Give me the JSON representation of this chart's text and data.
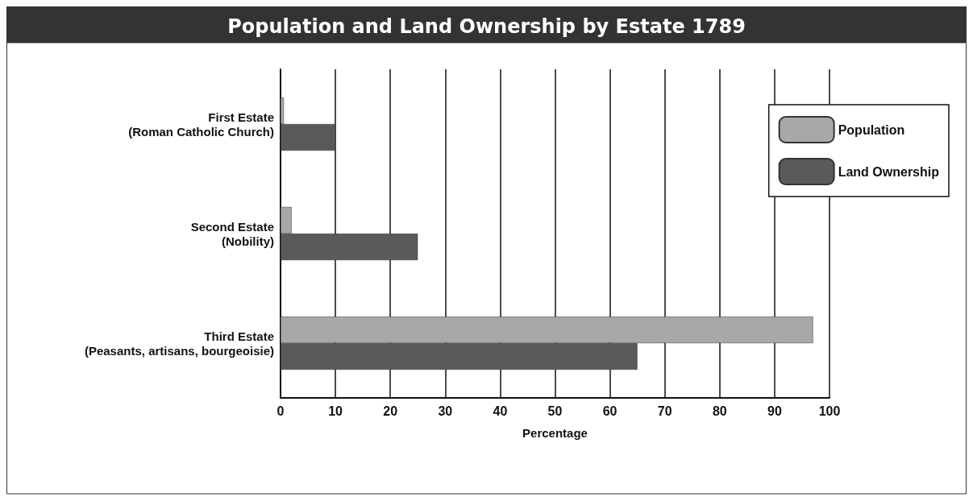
{
  "chart_data": {
    "type": "bar",
    "orientation": "horizontal",
    "title": "Population and Land Ownership by Estate 1789",
    "xlabel": "Percentage",
    "categories": [
      "First Estate\n(Roman Catholic Church)",
      "Second Estate\n(Nobility)",
      "Third Estate\n(Peasants, artisans, bourgeoisie)"
    ],
    "series": [
      {
        "name": "Population",
        "color": "#a8a8a8",
        "values": [
          0.6,
          2,
          97
        ]
      },
      {
        "name": "Land Ownership",
        "color": "#5a5a5a",
        "values": [
          10,
          25,
          65
        ]
      }
    ],
    "xlim": [
      0,
      100
    ],
    "xticks": [
      0,
      10,
      20,
      30,
      40,
      50,
      60,
      70,
      80,
      90,
      100
    ],
    "grid": "x",
    "legend": "top right"
  }
}
